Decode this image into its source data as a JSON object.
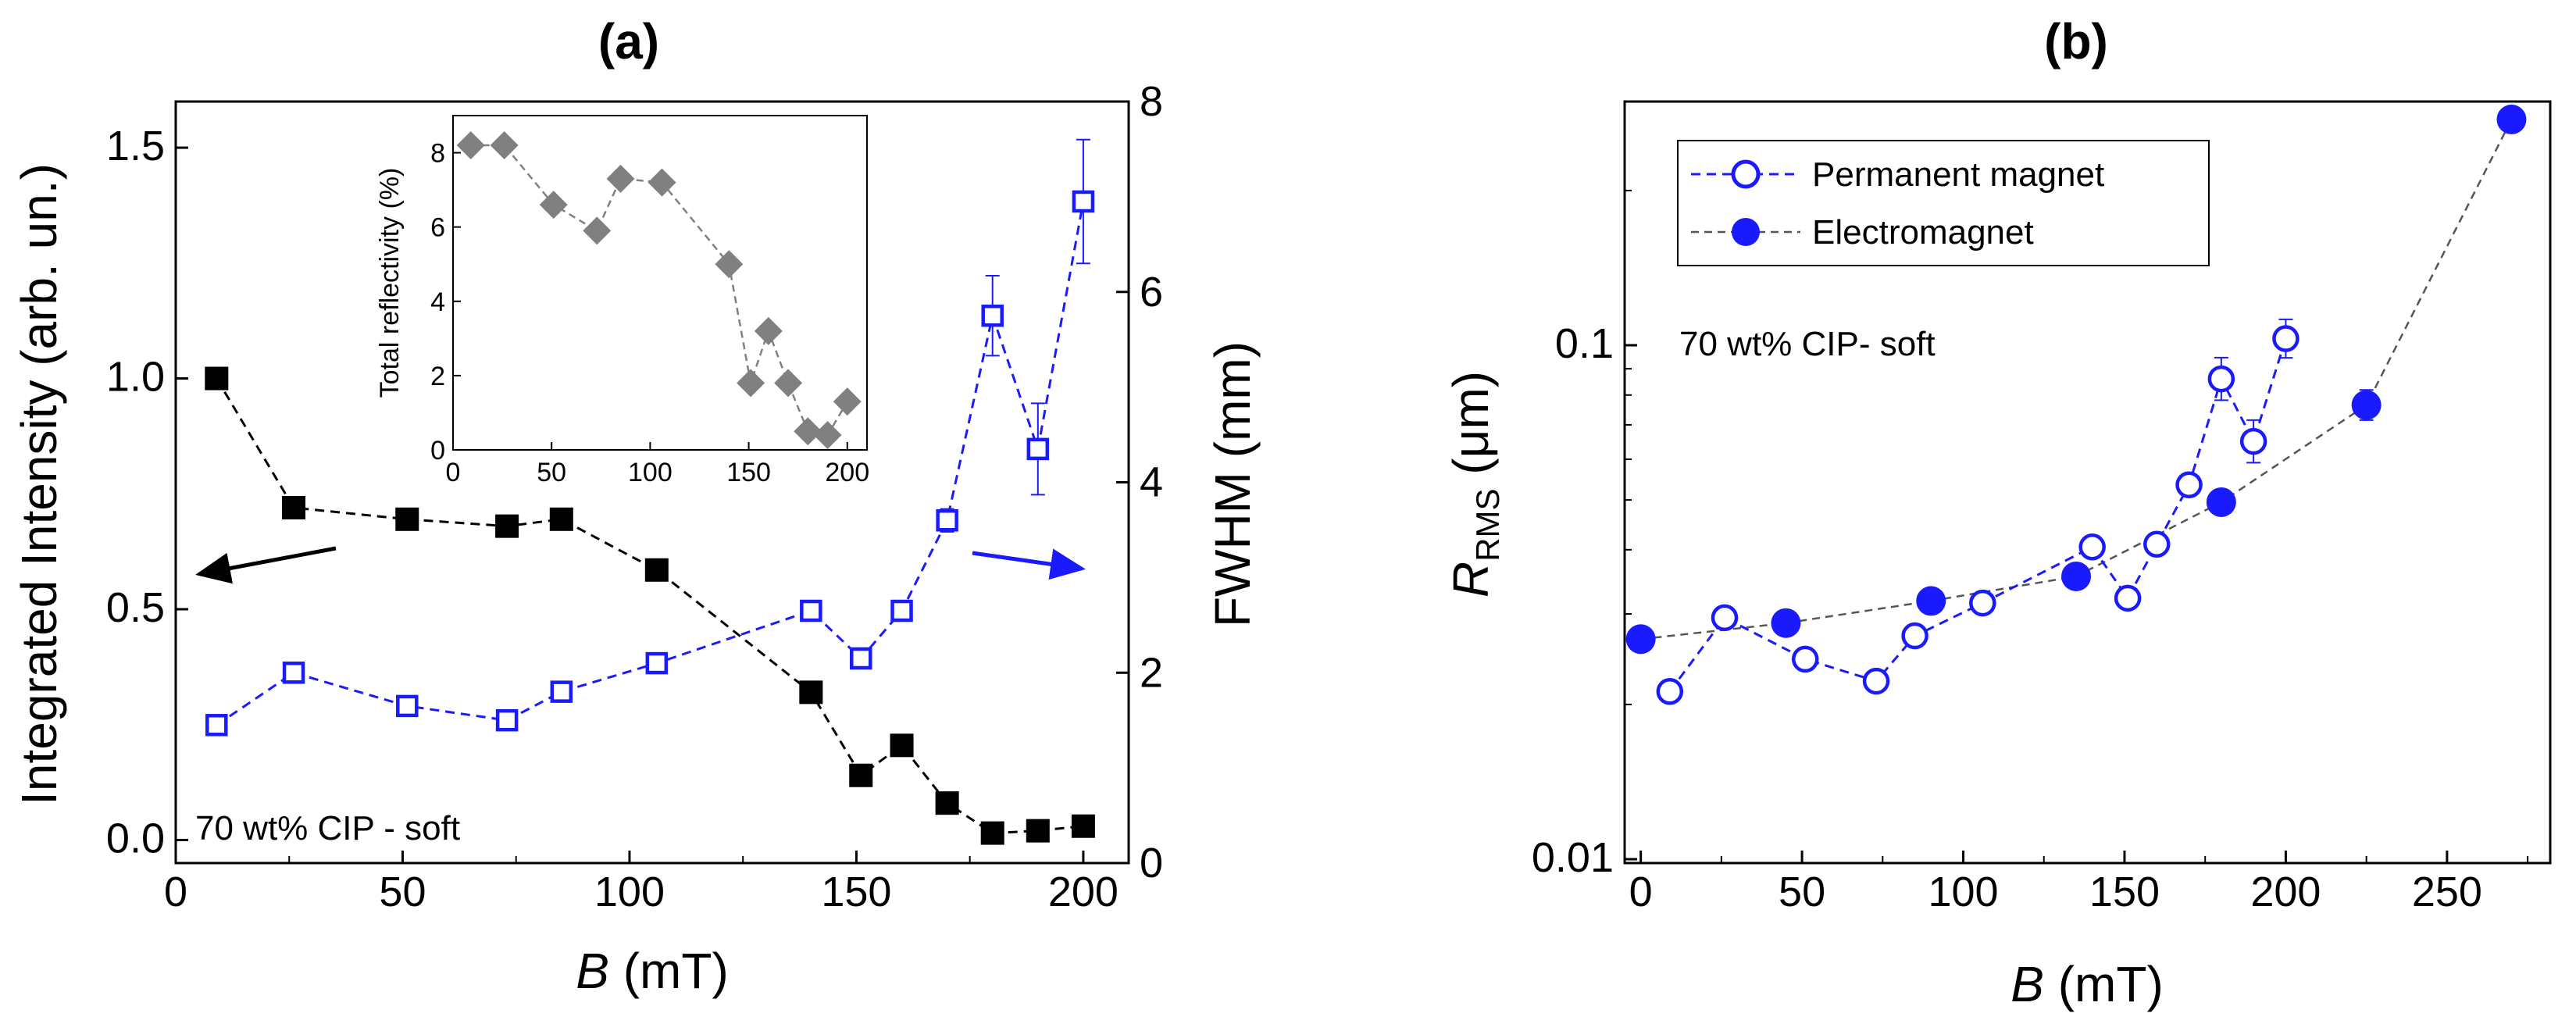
{
  "colors": {
    "black": "#000000",
    "blue": "#1a1aff",
    "gray": "#808080",
    "dash_gray": "#555555"
  },
  "chart_data": [
    {
      "type": "scatter",
      "panel_label": "(a)",
      "xlabel_var": "B",
      "xlabel_unit": " (mT)",
      "ylabel_left": "Integrated Intensity (arb. un.)",
      "ylabel_right": "FWHM (mm)",
      "xlim": [
        0,
        210
      ],
      "ylim_left": [
        -0.05,
        1.6
      ],
      "ylim_right": [
        0,
        8
      ],
      "x_ticks": [
        "0",
        "50",
        "100",
        "150",
        "200"
      ],
      "y_left_ticks": [
        "0.0",
        "0.5",
        "1.0",
        "1.5"
      ],
      "y_right_ticks": [
        "0",
        "2",
        "4",
        "6",
        "8"
      ],
      "annotation": "70 wt% CIP - soft",
      "series": [
        {
          "name": "Integrated Intensity",
          "axis": "left",
          "marker": "filled-square",
          "x": [
            9,
            26,
            51,
            73,
            85,
            106,
            140,
            151,
            160,
            170,
            180,
            190,
            200
          ],
          "y": [
            1.0,
            0.72,
            0.695,
            0.68,
            0.695,
            0.585,
            0.32,
            0.14,
            0.205,
            0.08,
            0.015,
            0.02,
            0.03
          ]
        },
        {
          "name": "FWHM",
          "axis": "right",
          "marker": "open-square",
          "x": [
            9,
            26,
            51,
            73,
            85,
            106,
            140,
            151,
            160,
            170,
            180,
            190,
            200
          ],
          "y": [
            1.45,
            2.0,
            1.65,
            1.5,
            1.8,
            2.1,
            2.65,
            2.15,
            2.65,
            3.6,
            5.75,
            4.35,
            6.95
          ],
          "err": [
            0.05,
            0.07,
            0.05,
            0.05,
            0.07,
            0.08,
            0.1,
            0.08,
            0.08,
            0.12,
            0.42,
            0.48,
            0.65
          ]
        }
      ],
      "inset": {
        "ylabel": "Total reflectivity (%)",
        "xlim": [
          0,
          210
        ],
        "ylim": [
          0,
          9
        ],
        "x_ticks": [
          "0",
          "50",
          "100",
          "150",
          "200"
        ],
        "y_ticks": [
          "0",
          "2",
          "4",
          "6",
          "8"
        ],
        "x": [
          9,
          26,
          51,
          73,
          85,
          106,
          140,
          151,
          160,
          170,
          180,
          190,
          200
        ],
        "y": [
          8.2,
          8.2,
          6.6,
          5.9,
          7.3,
          7.2,
          5.0,
          1.8,
          3.2,
          1.8,
          0.5,
          0.4,
          1.3
        ]
      }
    },
    {
      "type": "scatter",
      "panel_label": "(b)",
      "xlabel_var": "B",
      "xlabel_unit": " (mT)",
      "ylabel_var": "R",
      "ylabel_sub": "RMS",
      "ylabel_unit": " (μm)",
      "xlim": [
        -5,
        282
      ],
      "ylim": [
        0.01,
        0.32
      ],
      "yscale": "log",
      "x_ticks": [
        "0",
        "50",
        "100",
        "150",
        "200",
        "250"
      ],
      "y_ticks": [
        "0.01",
        "0.1"
      ],
      "annotation": "70 wt% CIP- soft",
      "legend": [
        "Permanent magnet",
        "Electromagnet"
      ],
      "series": [
        {
          "name": "Permanent magnet",
          "marker": "open-circle",
          "x": [
            9,
            26,
            51,
            73,
            85,
            106,
            140,
            151,
            160,
            170,
            180,
            190,
            200
          ],
          "y": [
            0.0212,
            0.0295,
            0.0245,
            0.0222,
            0.0272,
            0.0315,
            0.0405,
            0.0322,
            0.041,
            0.0535,
            0.086,
            0.065,
            0.103
          ],
          "err_factor": [
            1.03,
            1.03,
            1.03,
            1.03,
            1.03,
            1.03,
            1.04,
            1.03,
            1.04,
            1.04,
            1.1,
            1.1,
            1.09
          ]
        },
        {
          "name": "Electromagnet",
          "marker": "filled-circle",
          "x": [
            0,
            45,
            90,
            135,
            180,
            225,
            270
          ],
          "y": [
            0.0268,
            0.0288,
            0.0318,
            0.0355,
            0.0495,
            0.0765,
            0.275
          ],
          "err_factor": [
            1.0,
            1.0,
            1.0,
            1.0,
            1.0,
            1.07,
            1.0
          ]
        }
      ]
    }
  ]
}
